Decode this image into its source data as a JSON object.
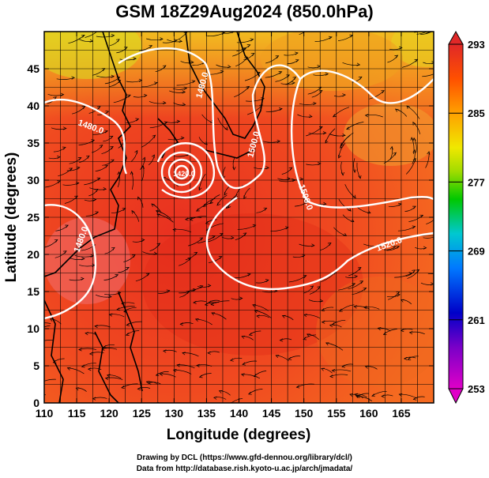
{
  "title": "GSM 18Z29Aug2024 (850.0hPa)",
  "x_axis": {
    "label": "Longitude (degrees)",
    "range": [
      110,
      170
    ],
    "ticks": [
      "110",
      "115",
      "120",
      "125",
      "130",
      "135",
      "140",
      "145",
      "150",
      "155",
      "160",
      "165"
    ]
  },
  "y_axis": {
    "label": "Latitude (degrees)",
    "range": [
      0,
      50
    ],
    "ticks": [
      "0",
      "5",
      "10",
      "15",
      "20",
      "25",
      "30",
      "35",
      "40",
      "45"
    ]
  },
  "colorbar": {
    "ticks": [
      "293",
      "285",
      "277",
      "269",
      "261",
      "253"
    ],
    "range": [
      253,
      293
    ],
    "colors": [
      "#d500d5",
      "#8000c0",
      "#0000c8",
      "#0080ff",
      "#00c8c8",
      "#00c800",
      "#80d800",
      "#e8e800",
      "#ffa000",
      "#ff5000",
      "#e02020"
    ]
  },
  "contours": [
    {
      "label": "1480.0"
    },
    {
      "label": "1480.0"
    },
    {
      "label": "1420.0"
    },
    {
      "label": "1500.0"
    },
    {
      "label": "1480.0"
    },
    {
      "label": "1500.0"
    },
    {
      "label": "1520.0"
    }
  ],
  "credits": {
    "line1": "Drawing by DCL (https://www.gfd-dennou.org/library/dcl/)",
    "line2": "Data from http://database.rish.kyoto-u.ac.jp/arch/jmadata/"
  }
}
